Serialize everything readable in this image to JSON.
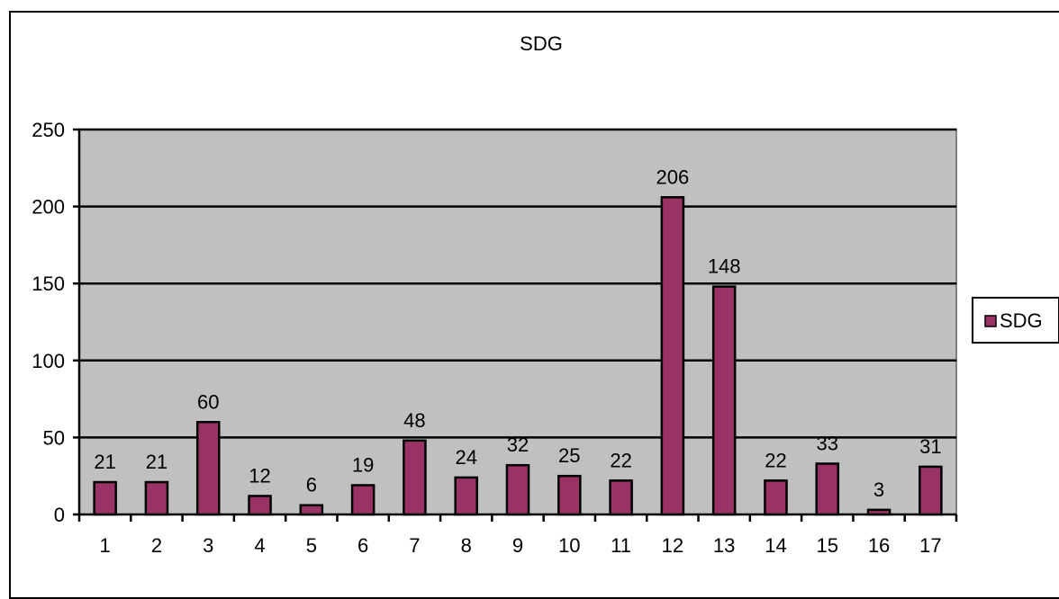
{
  "chart_data": {
    "type": "bar",
    "title": "SDG",
    "xlabel": "",
    "ylabel": "",
    "categories": [
      "1",
      "2",
      "3",
      "4",
      "5",
      "6",
      "7",
      "8",
      "9",
      "10",
      "11",
      "12",
      "13",
      "14",
      "15",
      "16",
      "17"
    ],
    "series": [
      {
        "name": "SDG",
        "values": [
          21,
          21,
          60,
          12,
          6,
          19,
          48,
          24,
          32,
          25,
          22,
          206,
          148,
          22,
          33,
          3,
          31
        ]
      }
    ],
    "ylim": [
      0,
      250
    ],
    "yticks": [
      0,
      50,
      100,
      150,
      200,
      250
    ],
    "grid": true,
    "legend": "right",
    "data_labels": true,
    "colors": {
      "bar": "#993366",
      "plot_background": "#c0c0c0",
      "gridline": "#000000"
    }
  }
}
